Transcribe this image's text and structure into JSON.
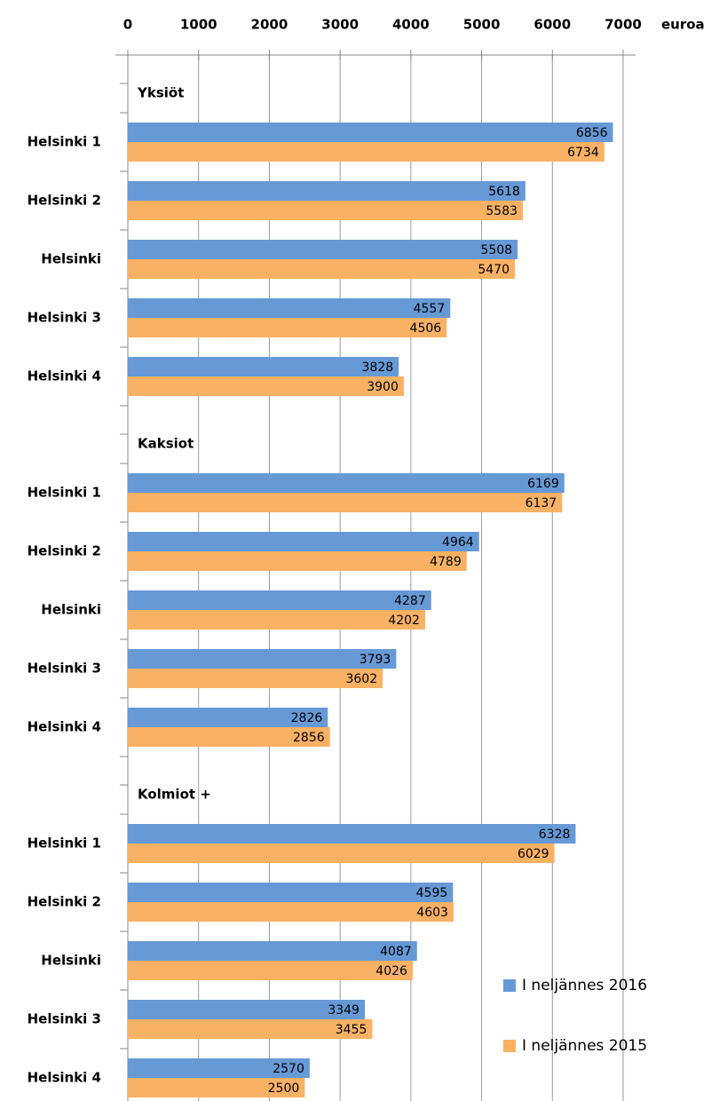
{
  "chart_data": {
    "type": "bar",
    "orientation": "horizontal",
    "x_label": "euroa",
    "groups": [
      {
        "name": "Yksiöt",
        "categories": [
          "Helsinki 1",
          "Helsinki 2",
          "Helsinki",
          "Helsinki 3",
          "Helsinki 4"
        ]
      },
      {
        "name": "Kaksiot",
        "categories": [
          "Helsinki 1",
          "Helsinki 2",
          "Helsinki",
          "Helsinki 3",
          "Helsinki 4"
        ]
      },
      {
        "name": "Kolmiot +",
        "categories": [
          "Helsinki 1",
          "Helsinki 2",
          "Helsinki",
          "Helsinki 3",
          "Helsinki 4"
        ]
      }
    ],
    "series": [
      {
        "name": "I neljännes 2016",
        "color": "#6699d6",
        "values": [
          6856,
          5618,
          5508,
          4557,
          3828,
          6169,
          4964,
          4287,
          3793,
          2826,
          6328,
          4595,
          4087,
          3349,
          2570
        ]
      },
      {
        "name": "I neljännes 2015",
        "color": "#f9b164",
        "values": [
          6734,
          5583,
          5470,
          4506,
          3900,
          6137,
          4789,
          4202,
          3602,
          2856,
          6029,
          4603,
          4026,
          3455,
          2500
        ]
      }
    ],
    "xlim": [
      0,
      7000
    ],
    "xticks": [
      0,
      1000,
      2000,
      3000,
      4000,
      5000,
      6000,
      7000
    ],
    "grid": true,
    "legend": "bottom-right"
  }
}
